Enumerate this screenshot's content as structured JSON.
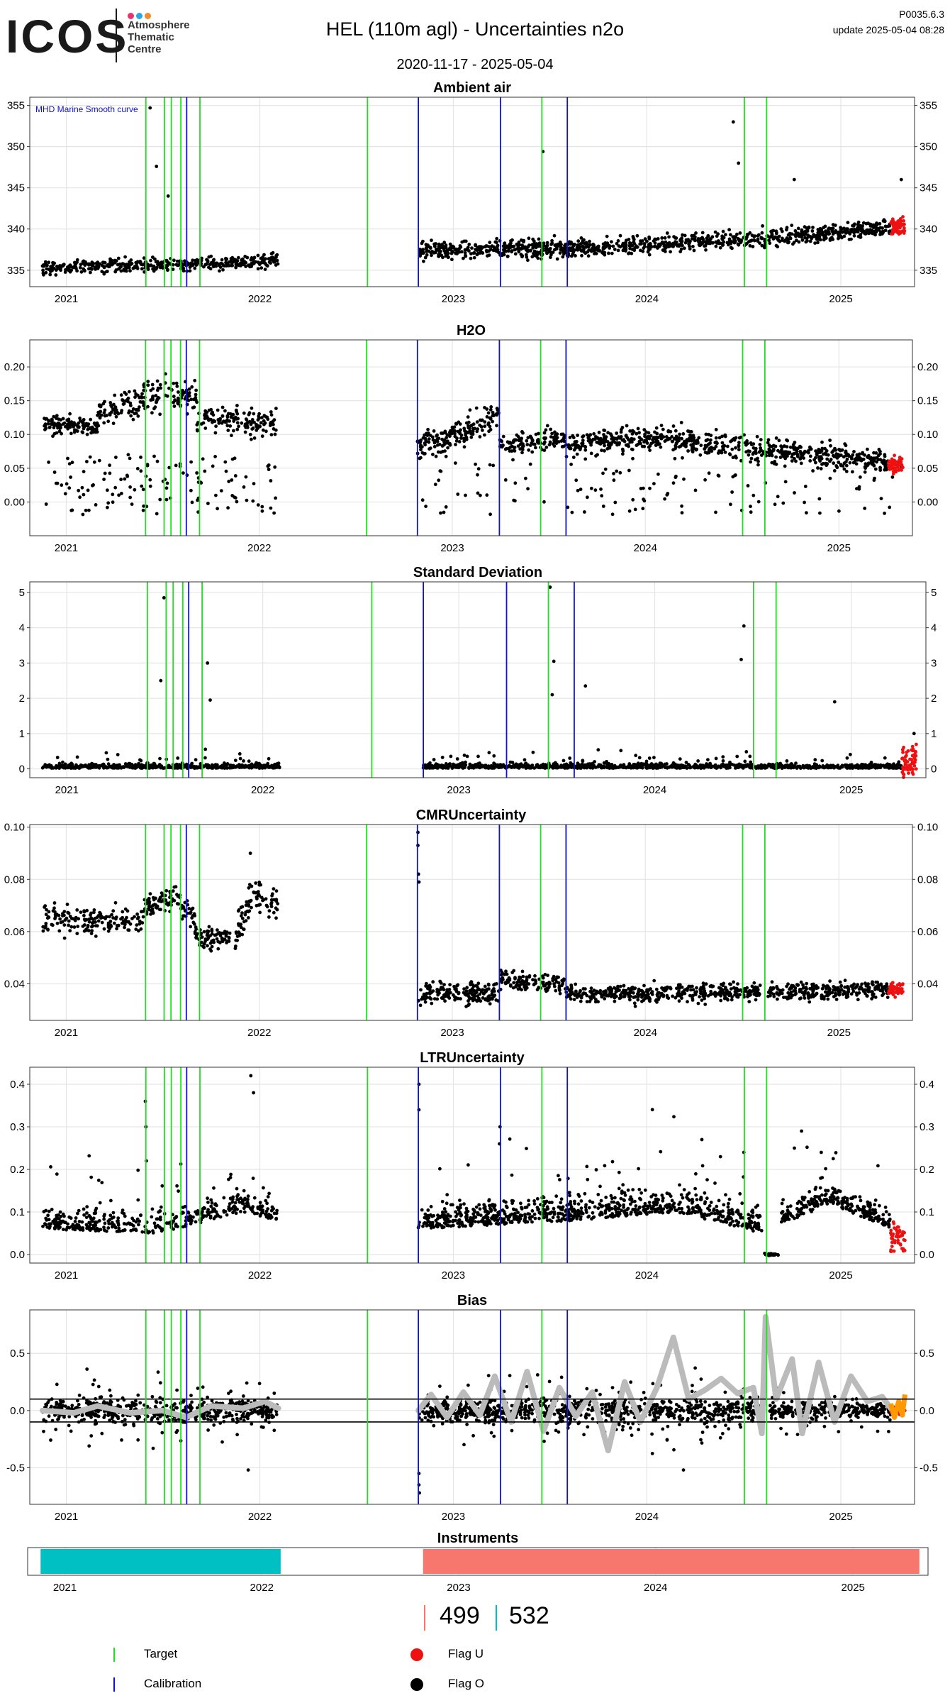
{
  "header": {
    "logo_text": "ICOS",
    "logo_subtitle": [
      "Atmosphere",
      "Thematic",
      "Centre"
    ],
    "title": "HEL  (110m agl) - Uncertainties n2o",
    "date_range": "2020-11-17 - 2025-05-04",
    "code": "P0035.6.3",
    "update": "update  2025-05-04 08:28"
  },
  "colors": {
    "target": "#22dd22",
    "calibration": "#1111cc",
    "flag_u": "#ee1111",
    "flag_o": "#000000",
    "smooth": "#bbbbbb",
    "instrument_a": "#00c0c4",
    "instrument_b": "#f7776e",
    "bias_flag": "#ff9900",
    "grid": "#e5e5e5",
    "logo_dot_1": "#e8336e",
    "logo_dot_2": "#2aa8df",
    "logo_dot_3": "#f08c2c"
  },
  "events": {
    "target": [
      "2021-05-31",
      "2021-07-05",
      "2021-07-18",
      "2021-08-05",
      "2021-09-10",
      "2022-07-23",
      "2023-06-17",
      "2024-07-03",
      "2024-08-14"
    ],
    "calibration": [
      "2021-08-16",
      "2022-10-27",
      "2023-03-31",
      "2023-08-04"
    ]
  },
  "chart_data": [
    {
      "type": "scatter",
      "title": "Ambient air",
      "xlabel": "",
      "ylabel": "",
      "annotation": "MHD Marine Smooth curve",
      "x_ticks": [
        "2021",
        "2022",
        "2023",
        "2024",
        "2025"
      ],
      "ylim": [
        333,
        356
      ],
      "y_ticks": [
        335,
        340,
        345,
        350,
        355
      ],
      "grid": true,
      "segments": [
        {
          "start": "2020-11-17",
          "end": "2022-02-05",
          "base": [
            [
              0,
              335.3
            ],
            [
              0.45,
              335.6
            ],
            [
              1,
              336.2
            ]
          ],
          "band": 1.4,
          "points": 430
        },
        {
          "start": "2022-10-27",
          "end": "2025-04-05",
          "base": [
            [
              0,
              337.3
            ],
            [
              0.4,
              337.8
            ],
            [
              0.7,
              338.8
            ],
            [
              1,
              340.2
            ]
          ],
          "band": 1.8,
          "points": 1000
        }
      ],
      "flag_u": {
        "start": "2025-04-05",
        "end": "2025-05-02",
        "base": 340.2,
        "band": 1.8,
        "points": 80
      },
      "outliers": [
        [
          "2021-06-08",
          354.7
        ],
        [
          "2021-06-20",
          347.6
        ],
        [
          "2021-07-12",
          344.0
        ],
        [
          "2023-06-19",
          349.4
        ],
        [
          "2024-06-12",
          353.0
        ],
        [
          "2024-06-22",
          348.0
        ],
        [
          "2024-10-05",
          346.0
        ],
        [
          "2025-04-25",
          346.0
        ]
      ]
    },
    {
      "type": "scatter",
      "title": "H2O",
      "xlabel": "",
      "ylabel": "",
      "x_ticks": [
        "2021",
        "2022",
        "2023",
        "2024",
        "2025"
      ],
      "ylim": [
        -0.05,
        0.24
      ],
      "y_ticks": [
        "0.00",
        "0.05",
        "0.10",
        "0.15",
        "0.20"
      ],
      "grid": true,
      "segments": [
        {
          "start": "2020-11-17",
          "end": "2021-03-01",
          "base": [
            [
              0,
              0.115
            ],
            [
              1,
              0.11
            ]
          ],
          "band": 0.022,
          "points": 120
        },
        {
          "start": "2021-03-01",
          "end": "2021-09-05",
          "base": [
            [
              0,
              0.13
            ],
            [
              0.5,
              0.155
            ],
            [
              1,
              0.16
            ]
          ],
          "band": 0.04,
          "points": 180
        },
        {
          "start": "2021-09-05",
          "end": "2022-02-05",
          "base": [
            [
              0,
              0.125
            ],
            [
              1,
              0.115
            ]
          ],
          "band": 0.035,
          "points": 140
        },
        {
          "start": "2022-10-27",
          "end": "2023-03-31",
          "base": [
            [
              0,
              0.08
            ],
            [
              0.5,
              0.1
            ],
            [
              1,
              0.13
            ]
          ],
          "band": 0.035,
          "points": 170
        },
        {
          "start": "2023-03-31",
          "end": "2023-08-04",
          "base": [
            [
              0,
              0.085
            ],
            [
              1,
              0.095
            ]
          ],
          "band": 0.025,
          "points": 120
        },
        {
          "start": "2023-08-04",
          "end": "2025-04-05",
          "base": [
            [
              0,
              0.085
            ],
            [
              0.3,
              0.095
            ],
            [
              0.65,
              0.075
            ],
            [
              1,
              0.06
            ]
          ],
          "band": 0.03,
          "points": 650
        }
      ],
      "sparse": {
        "ranges": [
          [
            "2020-11-17",
            "2022-02-05"
          ],
          [
            "2022-10-27",
            "2025-04-30"
          ]
        ],
        "low": -0.02,
        "high": 0.07,
        "points": 260
      },
      "flag_u": {
        "start": "2025-04-05",
        "end": "2025-05-02",
        "base": 0.055,
        "band": 0.02,
        "points": 55
      }
    },
    {
      "type": "scatter",
      "title": "Standard Deviation",
      "xlabel": "",
      "ylabel": "",
      "x_ticks": [
        "2021",
        "2022",
        "2023",
        "2024",
        "2025"
      ],
      "ylim": [
        -0.25,
        5.3
      ],
      "y_ticks": [
        "0",
        "1",
        "2",
        "3",
        "4",
        "5"
      ],
      "grid": true,
      "segments": [
        {
          "start": "2020-11-17",
          "end": "2022-02-05",
          "base": [
            [
              0,
              0.02
            ],
            [
              1,
              0.02
            ]
          ],
          "band": 0.35,
          "skew": true,
          "points": 480
        },
        {
          "start": "2022-10-27",
          "end": "2025-04-05",
          "base": [
            [
              0,
              0.02
            ],
            [
              1,
              0.02
            ]
          ],
          "band": 0.35,
          "skew": true,
          "points": 1000
        }
      ],
      "flag_u": {
        "start": "2025-04-05",
        "end": "2025-05-02",
        "base": 0.2,
        "band": 0.8,
        "points": 60
      },
      "outliers": [
        [
          "2021-07-01",
          4.85
        ],
        [
          "2021-06-25",
          2.5
        ],
        [
          "2021-09-20",
          3.0
        ],
        [
          "2021-09-25",
          1.95
        ],
        [
          "2023-06-20",
          5.15
        ],
        [
          "2023-06-27",
          3.05
        ],
        [
          "2023-06-24",
          2.1
        ],
        [
          "2023-08-25",
          2.35
        ],
        [
          "2024-06-15",
          4.05
        ],
        [
          "2024-06-10",
          3.1
        ],
        [
          "2024-12-01",
          1.9
        ],
        [
          "2025-04-28",
          1.0
        ]
      ]
    },
    {
      "type": "scatter",
      "title": "CMRUncertainty",
      "xlabel": "",
      "ylabel": "",
      "x_ticks": [
        "2021",
        "2022",
        "2023",
        "2024",
        "2025"
      ],
      "ylim": [
        0.026,
        0.101
      ],
      "y_ticks": [
        "0.04",
        "0.06",
        "0.08",
        "0.10"
      ],
      "grid": true,
      "segments": [
        {
          "start": "2020-11-17",
          "end": "2021-05-25",
          "base": [
            [
              0,
              0.065
            ],
            [
              1,
              0.064
            ]
          ],
          "band": 0.01,
          "points": 160
        },
        {
          "start": "2021-05-25",
          "end": "2021-09-01",
          "base": [
            [
              0,
              0.068
            ],
            [
              0.6,
              0.073
            ],
            [
              1,
              0.066
            ]
          ],
          "band": 0.008,
          "points": 110
        },
        {
          "start": "2021-09-01",
          "end": "2021-11-20",
          "base": [
            [
              0,
              0.058
            ],
            [
              1,
              0.057
            ]
          ],
          "band": 0.007,
          "points": 80
        },
        {
          "start": "2021-11-20",
          "end": "2022-02-05",
          "base": [
            [
              0,
              0.06
            ],
            [
              0.4,
              0.075
            ],
            [
              1,
              0.07
            ]
          ],
          "band": 0.012,
          "points": 80
        },
        {
          "start": "2022-10-29",
          "end": "2023-03-31",
          "base": [
            [
              0,
              0.036
            ],
            [
              1,
              0.037
            ]
          ],
          "band": 0.007,
          "points": 180
        },
        {
          "start": "2023-03-31",
          "end": "2023-08-04",
          "base": [
            [
              0,
              0.042
            ],
            [
              1,
              0.04
            ]
          ],
          "band": 0.006,
          "points": 120
        },
        {
          "start": "2023-08-04",
          "end": "2024-08-05",
          "base": [
            [
              0,
              0.036
            ],
            [
              1,
              0.037
            ]
          ],
          "band": 0.006,
          "points": 400
        },
        {
          "start": "2024-08-20",
          "end": "2025-04-05",
          "base": [
            [
              0,
              0.037
            ],
            [
              1,
              0.038
            ]
          ],
          "band": 0.006,
          "points": 250
        }
      ],
      "flag_u": {
        "start": "2025-04-05",
        "end": "2025-05-02",
        "base": 0.038,
        "band": 0.004,
        "points": 50
      },
      "outliers": [
        [
          "2022-10-28",
          0.098
        ],
        [
          "2022-10-28",
          0.093
        ],
        [
          "2022-10-29",
          0.082
        ],
        [
          "2022-10-30",
          0.079
        ],
        [
          "2021-12-15",
          0.09
        ]
      ]
    },
    {
      "type": "scatter",
      "title": "LTRUncertainty",
      "xlabel": "",
      "ylabel": "",
      "x_ticks": [
        "2021",
        "2022",
        "2023",
        "2024",
        "2025"
      ],
      "ylim": [
        -0.02,
        0.44
      ],
      "y_ticks": [
        "0.0",
        "0.1",
        "0.2",
        "0.3",
        "0.4"
      ],
      "grid": true,
      "segments": [
        {
          "start": "2020-11-17",
          "end": "2022-02-05",
          "base": [
            [
              0,
              0.06
            ],
            [
              0.5,
              0.05
            ],
            [
              0.85,
              0.1
            ],
            [
              1,
              0.08
            ]
          ],
          "band": 0.13,
          "skew": true,
          "points": 420
        },
        {
          "start": "2022-10-27",
          "end": "2024-08-05",
          "base": [
            [
              0,
              0.06
            ],
            [
              0.45,
              0.08
            ],
            [
              0.75,
              0.1
            ],
            [
              1,
              0.05
            ]
          ],
          "band": 0.16,
          "skew": true,
          "points": 800
        },
        {
          "start": "2024-08-05",
          "end": "2024-09-05",
          "base": [
            [
              0,
              0.0
            ],
            [
              1,
              0.0
            ]
          ],
          "band": 0.005,
          "points": 20
        },
        {
          "start": "2024-09-10",
          "end": "2025-04-05",
          "base": [
            [
              0,
              0.07
            ],
            [
              0.45,
              0.12
            ],
            [
              1,
              0.06
            ]
          ],
          "band": 0.12,
          "skew": true,
          "points": 250
        }
      ],
      "flag_u": {
        "start": "2025-04-05",
        "end": "2025-05-02",
        "base": 0.04,
        "band": 0.06,
        "points": 50
      },
      "outliers": [
        [
          "2021-05-30",
          0.36
        ],
        [
          "2021-05-31",
          0.3
        ],
        [
          "2021-06-01",
          0.22
        ],
        [
          "2021-12-15",
          0.42
        ],
        [
          "2021-12-20",
          0.38
        ],
        [
          "2022-10-28",
          0.4
        ],
        [
          "2022-10-28",
          0.34
        ],
        [
          "2023-03-30",
          0.3
        ],
        [
          "2023-03-29",
          0.26
        ],
        [
          "2024-07-02",
          0.24
        ],
        [
          "2024-11-25",
          0.24
        ]
      ]
    },
    {
      "type": "scatter",
      "title": "Bias",
      "xlabel": "",
      "ylabel": "",
      "x_ticks": [
        "2021",
        "2022",
        "2023",
        "2024",
        "2025"
      ],
      "ylim": [
        -0.82,
        0.88
      ],
      "y_ticks": [
        "-0.5",
        "0.0",
        "0.5"
      ],
      "grid": true,
      "thresholds": [
        0.1,
        -0.1
      ],
      "segments": [
        {
          "start": "2020-11-17",
          "end": "2022-02-05",
          "base": [
            [
              0,
              0.0
            ],
            [
              1,
              0.0
            ]
          ],
          "band": 0.28,
          "spread": true,
          "points": 600
        },
        {
          "start": "2022-10-27",
          "end": "2024-08-05",
          "base": [
            [
              0,
              0.0
            ],
            [
              1,
              0.0
            ]
          ],
          "band": 0.3,
          "spread": true,
          "points": 900
        },
        {
          "start": "2024-08-20",
          "end": "2025-04-05",
          "base": [
            [
              0,
              0.0
            ],
            [
              1,
              0.0
            ]
          ],
          "band": 0.2,
          "spread": true,
          "points": 300
        }
      ],
      "flag_u": {
        "start": "2025-04-05",
        "end": "2025-05-02",
        "base": 0.0,
        "band": 0.08,
        "points": 40
      },
      "outliers": [
        [
          "2022-10-28",
          -0.55
        ],
        [
          "2022-10-28",
          -0.65
        ],
        [
          "2022-10-29",
          -0.72
        ],
        [
          "2021-12-10",
          -0.52
        ],
        [
          "2024-03-10",
          -0.52
        ]
      ],
      "smooth_curve": [
        [
          "2020-11-17",
          0.0
        ],
        [
          "2021-01-15",
          -0.02
        ],
        [
          "2021-03-01",
          0.04
        ],
        [
          "2021-05-01",
          -0.02
        ],
        [
          "2021-07-01",
          0.0
        ],
        [
          "2021-08-15",
          -0.06
        ],
        [
          "2021-10-01",
          0.04
        ],
        [
          "2021-12-01",
          0.02
        ],
        [
          "2022-01-10",
          0.08
        ],
        [
          "2022-02-05",
          0.02
        ],
        [
          "2022-10-27",
          0.0
        ],
        [
          "2022-11-20",
          0.14
        ],
        [
          "2022-12-20",
          -0.06
        ],
        [
          "2023-01-20",
          0.16
        ],
        [
          "2023-02-20",
          -0.04
        ],
        [
          "2023-03-20",
          0.3
        ],
        [
          "2023-04-20",
          -0.1
        ],
        [
          "2023-05-20",
          0.34
        ],
        [
          "2023-06-20",
          -0.18
        ],
        [
          "2023-07-20",
          0.2
        ],
        [
          "2023-08-20",
          -0.05
        ],
        [
          "2023-09-20",
          0.16
        ],
        [
          "2023-10-20",
          -0.35
        ],
        [
          "2023-11-20",
          0.25
        ],
        [
          "2023-12-20",
          -0.1
        ],
        [
          "2024-01-20",
          0.2
        ],
        [
          "2024-02-20",
          0.64
        ],
        [
          "2024-03-20",
          0.1
        ],
        [
          "2024-04-20",
          0.18
        ],
        [
          "2024-05-20",
          0.28
        ],
        [
          "2024-06-20",
          0.15
        ],
        [
          "2024-07-20",
          0.2
        ],
        [
          "2024-08-05",
          -0.2
        ],
        [
          "2024-08-12",
          0.82
        ],
        [
          "2024-09-01",
          0.1
        ],
        [
          "2024-10-01",
          0.45
        ],
        [
          "2024-10-20",
          -0.2
        ],
        [
          "2024-11-20",
          0.42
        ],
        [
          "2024-12-20",
          -0.1
        ],
        [
          "2025-01-20",
          0.3
        ],
        [
          "2025-02-20",
          0.08
        ],
        [
          "2025-03-20",
          0.12
        ],
        [
          "2025-04-05",
          0.02
        ]
      ],
      "flag_curve": [
        [
          "2025-04-05",
          0.06
        ],
        [
          "2025-04-12",
          -0.06
        ],
        [
          "2025-04-20",
          0.08
        ],
        [
          "2025-04-27",
          -0.04
        ],
        [
          "2025-05-02",
          0.14
        ]
      ]
    },
    {
      "type": "bar",
      "title": "Instruments",
      "x_ticks": [
        "2021",
        "2022",
        "2023",
        "2024",
        "2025"
      ],
      "intervals": [
        {
          "start": "2020-11-17",
          "end": "2022-02-05",
          "color_key": "instrument_a",
          "instrument": "532"
        },
        {
          "start": "2022-10-27",
          "end": "2025-05-04",
          "color_key": "instrument_b",
          "instrument": "499"
        }
      ]
    }
  ],
  "counts": [
    {
      "label": "499",
      "color_key": "instrument_b"
    },
    {
      "label": "532",
      "color_key": "instrument_a"
    }
  ],
  "legend": {
    "target": "Target",
    "calibration": "Calibration",
    "flag_u": "Flag U",
    "flag_o": "Flag O"
  }
}
